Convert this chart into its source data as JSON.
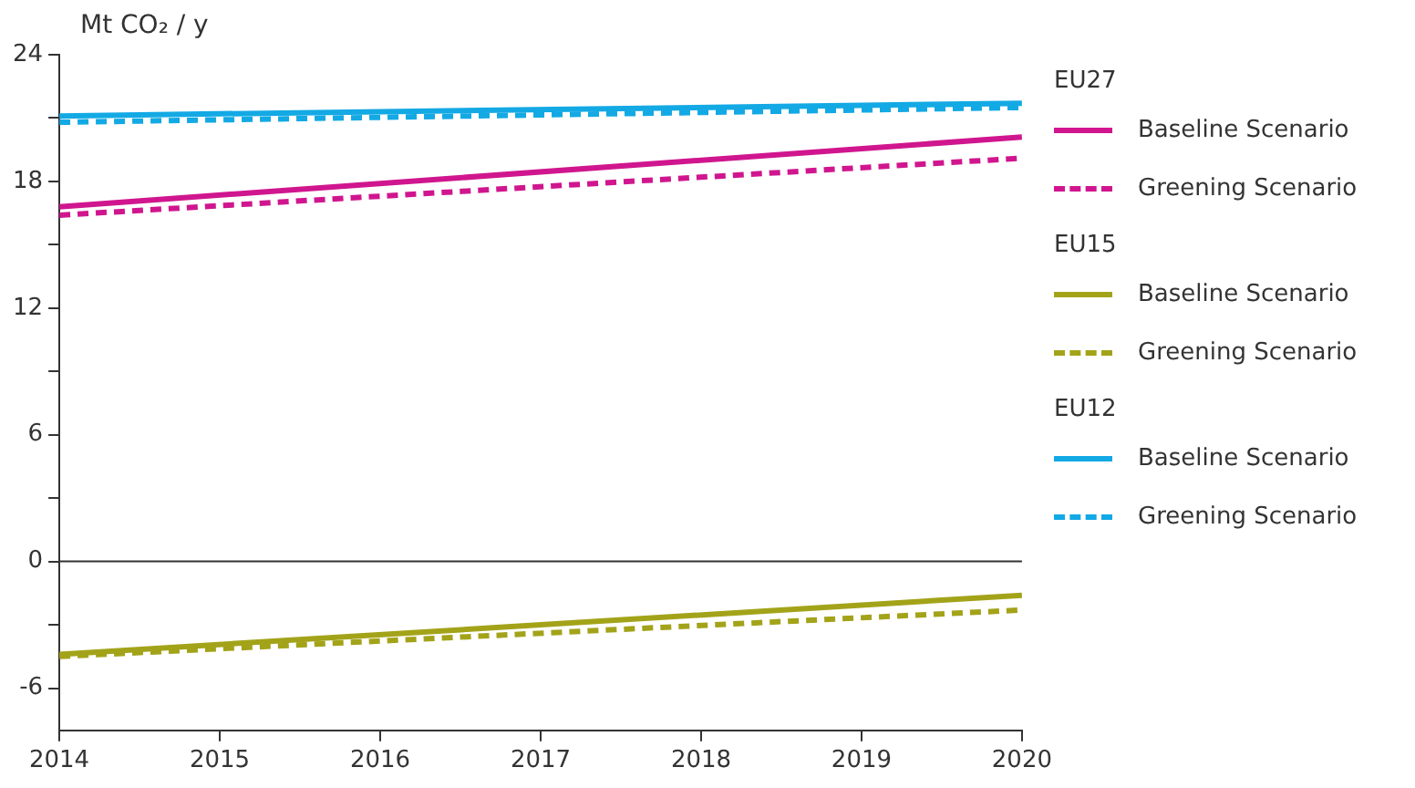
{
  "chart_data": {
    "type": "line",
    "ylabel": "Mt CO₂ / y",
    "x": [
      2014,
      2020
    ],
    "series": [
      {
        "name": "Baseline Scenario",
        "color": "#d0168e",
        "values": [
          16.8,
          20.1
        ],
        "line_style": "solid"
      },
      {
        "name": "Greening Scenario",
        "color": "#d0168e",
        "values": [
          16.4,
          19.1
        ],
        "line_style": "dashed"
      },
      {
        "name": "Baseline Scenario",
        "color": "#a3a31a",
        "values": [
          -4.4,
          -1.6
        ],
        "line_style": "solid"
      },
      {
        "name": "Greening Scenario",
        "color": "#a3a31a",
        "values": [
          -4.5,
          -2.3
        ],
        "line_style": "dashed"
      },
      {
        "name": "Baseline Scenario",
        "color": "#13a9e4",
        "values": [
          21.1,
          21.7
        ],
        "line_style": "solid"
      },
      {
        "name": "Greening Scenario",
        "color": "#13a9e4",
        "values": [
          20.8,
          21.5
        ],
        "line_style": "dashed"
      }
    ],
    "annotations": [
      "EU27",
      "EU15",
      "EU12"
    ],
    "xlim": [
      2014,
      2020
    ],
    "xticks": [
      2014,
      2015,
      2016,
      2017,
      2018,
      2019,
      2020
    ],
    "ylim": [
      -8,
      24
    ],
    "yticks": [
      {
        "value": -6,
        "label": "-6"
      },
      {
        "value": -3,
        "label": null
      },
      0,
      {
        "value": 3,
        "label": null
      },
      6,
      {
        "value": 9,
        "label": null
      },
      12,
      {
        "value": 15,
        "label": null
      },
      18,
      {
        "value": 21,
        "label": null
      },
      24
    ],
    "ref_lines": [
      {
        "axis": "y",
        "value": 0,
        "color": "#333333"
      }
    ],
    "legend": "right",
    "grid": false,
    "marker": "none"
  }
}
